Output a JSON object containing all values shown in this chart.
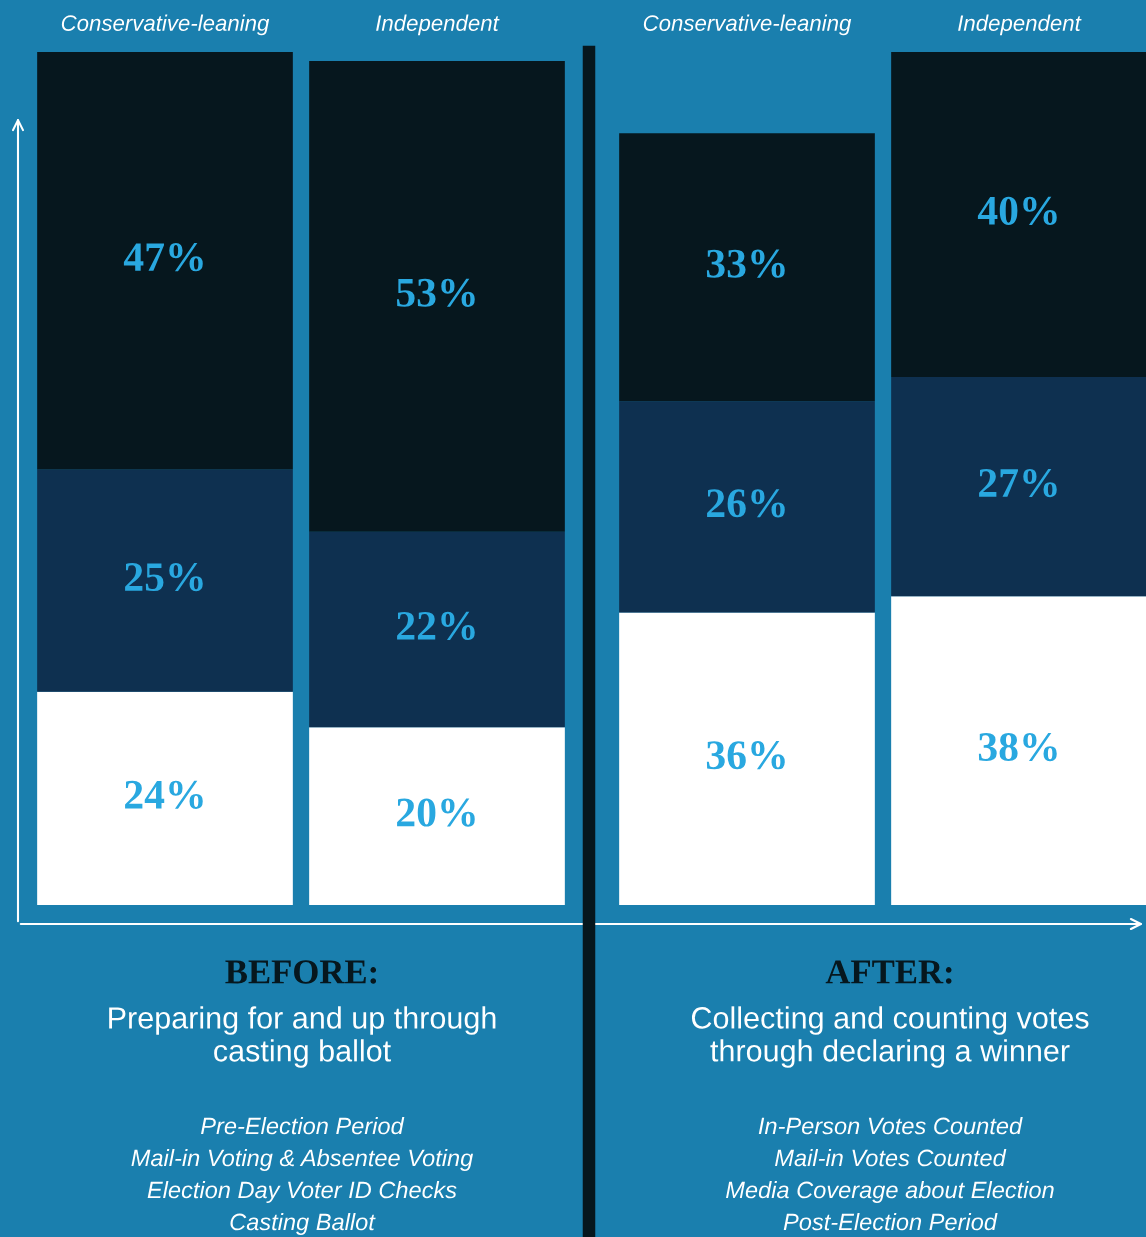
{
  "chart_data": [
    {
      "type": "bar",
      "stacked": true,
      "title": "BEFORE:",
      "subtitle": "Preparing for and up through\ncasting ballot",
      "categories": [
        "Conservative-leaning",
        "Independent"
      ],
      "series": [
        {
          "color": "#ffffff",
          "values": [
            24,
            20
          ],
          "value_labels": [
            "24%",
            "20%"
          ]
        },
        {
          "color": "#0e3050",
          "values": [
            25,
            22
          ],
          "value_labels": [
            "25%",
            "22%"
          ]
        },
        {
          "color": "#06171e",
          "values": [
            47,
            53
          ],
          "value_labels": [
            "47%",
            "53%"
          ]
        }
      ],
      "annotations": [
        "Pre-Election Period",
        "Mail-in Voting & Absentee Voting",
        "Election Day Voter ID Checks",
        "Casting Ballot"
      ]
    },
    {
      "type": "bar",
      "stacked": true,
      "title": "AFTER:",
      "subtitle": "Collecting and counting votes\nthrough declaring a winner",
      "categories": [
        "Conservative-leaning",
        "Independent"
      ],
      "series": [
        {
          "color": "#ffffff",
          "values": [
            36,
            38
          ],
          "value_labels": [
            "36%",
            "38%"
          ]
        },
        {
          "color": "#0e3050",
          "values": [
            26,
            27
          ],
          "value_labels": [
            "26%",
            "27%"
          ]
        },
        {
          "color": "#06171e",
          "values": [
            33,
            40
          ],
          "value_labels": [
            "33%",
            "40%"
          ]
        }
      ],
      "annotations": [
        "In-Person Votes Counted",
        "Mail-in Votes Counted",
        "Media Coverage about Election",
        "Post-Election Period"
      ]
    }
  ]
}
